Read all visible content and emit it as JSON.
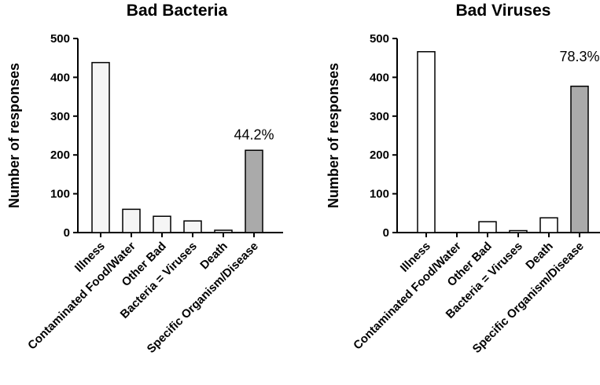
{
  "chart_data": [
    {
      "type": "bar",
      "title": "Bad Bacteria",
      "xlabel": "",
      "ylabel": "Number of responses",
      "ylim": [
        0,
        500
      ],
      "yticks": [
        0,
        100,
        200,
        300,
        400,
        500
      ],
      "categories": [
        "Illness",
        "Contaminated Food/Water",
        "Other Bad",
        "Bacteria = Viruses",
        "Death",
        "Specific Organism/Disease"
      ],
      "values": [
        438,
        60,
        42,
        30,
        6,
        212
      ],
      "bar_colors": [
        "#f5f5f5",
        "#f5f5f5",
        "#f5f5f5",
        "#f5f5f5",
        "#f5f5f5",
        "#aaaaaa"
      ],
      "annotation": {
        "text": "44.2%",
        "category": "Specific Organism/Disease"
      }
    },
    {
      "type": "bar",
      "title": "Bad Viruses",
      "xlabel": "",
      "ylabel": "Number of responses",
      "ylim": [
        0,
        500
      ],
      "yticks": [
        0,
        100,
        200,
        300,
        400,
        500
      ],
      "categories": [
        "Illness",
        "Contaminated Food/Water",
        "Other Bad",
        "Bacteria = Viruses",
        "Death",
        "Specific Organism/Disease"
      ],
      "values": [
        466,
        0,
        28,
        5,
        38,
        377
      ],
      "bar_colors": [
        "#ffffff",
        "#ffffff",
        "#ffffff",
        "#ffffff",
        "#ffffff",
        "#aaaaaa"
      ],
      "annotation": {
        "text": "78.3%",
        "category": "Specific Organism/Disease"
      }
    }
  ]
}
